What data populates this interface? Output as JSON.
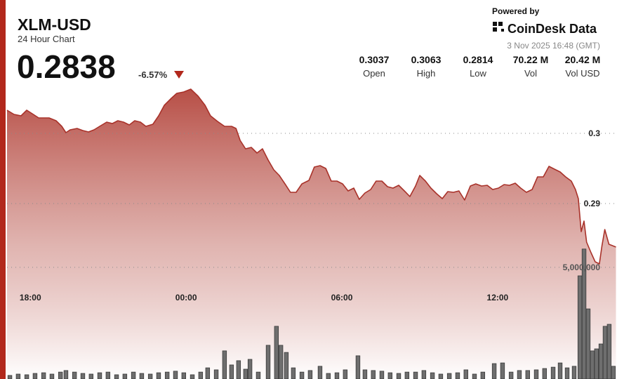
{
  "header": {
    "title": "XLM-USD",
    "subtitle": "24 Hour Chart",
    "price": "0.2838",
    "change": "-6.57%",
    "powered_by": "Powered by",
    "brand": "CoinDesk Data",
    "timestamp": "3 Nov 2025 16:48 (GMT)",
    "stats": [
      {
        "value": "0.3037",
        "label": "Open"
      },
      {
        "value": "0.3063",
        "label": "High"
      },
      {
        "value": "0.2814",
        "label": "Low"
      },
      {
        "value": "70.22 M",
        "label": "Vol"
      },
      {
        "value": "20.42 M",
        "label": "Vol USD"
      }
    ]
  },
  "chart_data": {
    "type": "line",
    "xlim": [
      17.1,
      40.6
    ],
    "xticks": [
      {
        "value": 18,
        "label": "18:00"
      },
      {
        "value": 24,
        "label": "00:00"
      },
      {
        "value": 30,
        "label": "06:00"
      },
      {
        "value": 36,
        "label": "12:00"
      }
    ],
    "ylim": [
      0.265,
      0.307
    ],
    "yticks": [
      0.29,
      0.3
    ],
    "y2lim": [
      0,
      13200000
    ],
    "y2ticks": [
      {
        "value": 5000000,
        "label": "5,000,000"
      }
    ],
    "grid": true,
    "x": [
      17.1,
      17.37,
      17.64,
      17.86,
      18.07,
      18.32,
      18.72,
      18.99,
      19.21,
      19.37,
      19.53,
      19.8,
      20.02,
      20.24,
      20.45,
      20.67,
      20.94,
      21.16,
      21.37,
      21.59,
      21.81,
      22.02,
      22.24,
      22.45,
      22.72,
      22.94,
      23.16,
      23.43,
      23.64,
      23.91,
      24.18,
      24.46,
      24.73,
      24.94,
      25.21,
      25.48,
      25.75,
      25.92,
      26.08,
      26.29,
      26.51,
      26.73,
      26.94,
      27.16,
      27.38,
      27.59,
      27.81,
      28.02,
      28.24,
      28.46,
      28.73,
      28.94,
      29.16,
      29.38,
      29.59,
      29.81,
      30.03,
      30.24,
      30.46,
      30.67,
      30.89,
      31.11,
      31.32,
      31.54,
      31.76,
      31.97,
      32.19,
      32.41,
      32.62,
      32.84,
      33.0,
      33.22,
      33.43,
      33.65,
      33.87,
      34.08,
      34.3,
      34.51,
      34.73,
      34.95,
      35.16,
      35.38,
      35.6,
      35.81,
      36.03,
      36.25,
      36.46,
      36.68,
      36.89,
      37.11,
      37.33,
      37.54,
      37.76,
      37.98,
      38.19,
      38.41,
      38.62,
      38.84,
      39.0,
      39.11,
      39.22,
      39.33,
      39.43,
      39.6,
      39.76,
      39.92,
      40.02,
      40.13,
      40.29,
      40.56
    ],
    "series": [
      {
        "type": "line",
        "color": "#a8322a",
        "values": [
          0.3033,
          0.3027,
          0.3025,
          0.3033,
          0.3028,
          0.3022,
          0.3022,
          0.3018,
          0.301,
          0.3001,
          0.3005,
          0.3007,
          0.3004,
          0.3002,
          0.3005,
          0.301,
          0.3016,
          0.3014,
          0.3018,
          0.3016,
          0.3012,
          0.3018,
          0.3016,
          0.301,
          0.3013,
          0.3025,
          0.304,
          0.305,
          0.3057,
          0.3059,
          0.3063,
          0.3053,
          0.304,
          0.3025,
          0.3017,
          0.301,
          0.301,
          0.3007,
          0.299,
          0.2978,
          0.298,
          0.2972,
          0.2978,
          0.2962,
          0.2948,
          0.294,
          0.2928,
          0.2916,
          0.2916,
          0.2928,
          0.2933,
          0.2952,
          0.2954,
          0.295,
          0.2932,
          0.2932,
          0.2928,
          0.2918,
          0.2922,
          0.2906,
          0.2915,
          0.292,
          0.2932,
          0.2932,
          0.2924,
          0.2922,
          0.2926,
          0.2918,
          0.291,
          0.2925,
          0.294,
          0.2932,
          0.2922,
          0.2914,
          0.2907,
          0.2917,
          0.2916,
          0.2918,
          0.2905,
          0.2925,
          0.2928,
          0.2925,
          0.2926,
          0.292,
          0.2922,
          0.2927,
          0.2926,
          0.2929,
          0.2922,
          0.2916,
          0.292,
          0.2938,
          0.2938,
          0.2953,
          0.2949,
          0.2945,
          0.2938,
          0.2932,
          0.292,
          0.2907,
          0.286,
          0.2875,
          0.2845,
          0.283,
          0.2817,
          0.2814,
          0.284,
          0.2863,
          0.2842,
          0.2838
        ]
      },
      {
        "type": "bar",
        "axis": "y2",
        "color": "#6e6e6e",
        "x": [
          17.21,
          17.53,
          17.86,
          18.18,
          18.51,
          18.83,
          19.16,
          19.37,
          19.7,
          20.02,
          20.34,
          20.67,
          20.99,
          21.32,
          21.64,
          21.97,
          22.29,
          22.62,
          22.94,
          23.27,
          23.59,
          23.91,
          24.24,
          24.56,
          24.83,
          25.16,
          25.48,
          25.75,
          26.02,
          26.29,
          26.46,
          26.78,
          27.16,
          27.48,
          27.65,
          27.86,
          28.13,
          28.46,
          28.78,
          29.16,
          29.48,
          29.81,
          30.13,
          30.62,
          30.89,
          31.21,
          31.54,
          31.86,
          32.19,
          32.51,
          32.84,
          33.16,
          33.49,
          33.81,
          34.14,
          34.46,
          34.78,
          35.11,
          35.43,
          35.87,
          36.19,
          36.52,
          36.84,
          37.16,
          37.49,
          37.81,
          38.14,
          38.41,
          38.68,
          38.95,
          39.17,
          39.33,
          39.49,
          39.65,
          39.81,
          39.98,
          40.14,
          40.3,
          40.46
        ],
        "values": [
          160000,
          220000,
          190000,
          250000,
          280000,
          220000,
          310000,
          380000,
          310000,
          250000,
          220000,
          280000,
          310000,
          190000,
          220000,
          310000,
          250000,
          220000,
          280000,
          310000,
          350000,
          280000,
          190000,
          310000,
          500000,
          410000,
          1260000,
          630000,
          820000,
          440000,
          880000,
          310000,
          1510000,
          2360000,
          1510000,
          1190000,
          500000,
          310000,
          380000,
          570000,
          250000,
          280000,
          410000,
          1040000,
          410000,
          380000,
          350000,
          280000,
          250000,
          310000,
          310000,
          380000,
          280000,
          220000,
          250000,
          280000,
          410000,
          220000,
          310000,
          690000,
          720000,
          310000,
          380000,
          380000,
          410000,
          470000,
          530000,
          720000,
          500000,
          570000,
          4620000,
          5820000,
          3140000,
          1260000,
          1350000,
          1570000,
          2360000,
          2450000,
          570000
        ]
      }
    ]
  }
}
